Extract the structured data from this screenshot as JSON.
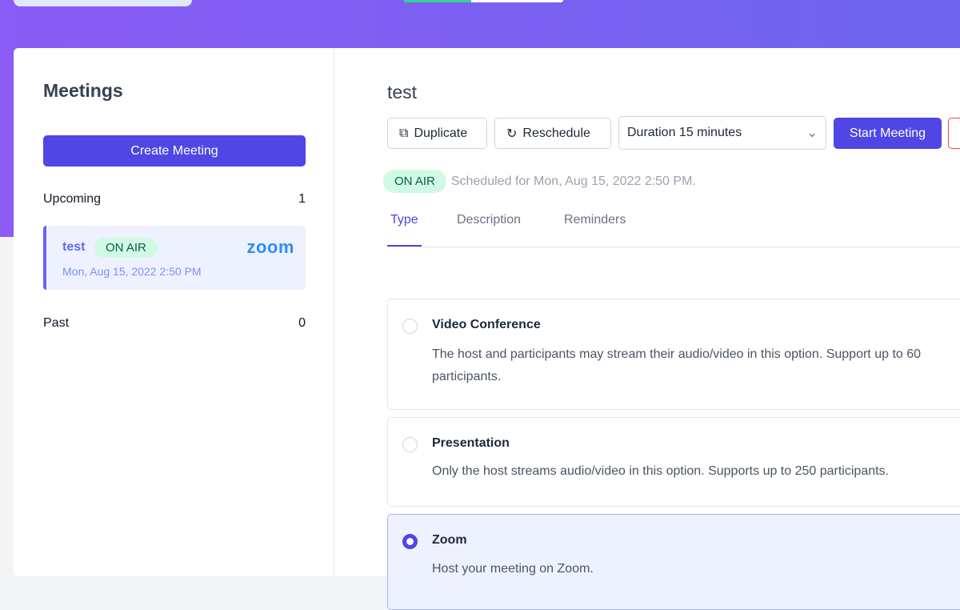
{
  "top": {
    "progress_percent": 42,
    "accent": "#34d399"
  },
  "sidebar": {
    "title": "Meetings",
    "create_label": "Create Meeting",
    "upcoming": {
      "label": "Upcoming",
      "count": "1"
    },
    "past": {
      "label": "Past",
      "count": "0"
    },
    "meeting": {
      "name": "test",
      "badge": "ON AIR",
      "date": "Mon, Aug 15, 2022 2:50 PM",
      "provider": "zoom"
    }
  },
  "main": {
    "title": "test",
    "toolbar": {
      "duplicate": "Duplicate",
      "reschedule": "Reschedule",
      "duration": "Duration 15 minutes",
      "start": "Start Meeting"
    },
    "status": {
      "badge": "ON AIR",
      "text": "Scheduled for Mon, Aug 15, 2022 2:50 PM."
    },
    "tabs": [
      {
        "label": "Type"
      },
      {
        "label": "Description"
      },
      {
        "label": "Reminders"
      }
    ],
    "options": [
      {
        "title": "Video Conference",
        "desc": "The host and participants may stream their audio/video in this option. Support up to 60 participants.",
        "selected": false
      },
      {
        "title": "Presentation",
        "desc": "Only the host streams audio/video in this option. Supports up to 250 participants.",
        "selected": false
      },
      {
        "title": "Zoom",
        "desc": "Host your meeting on Zoom.",
        "selected": true
      }
    ]
  },
  "colors": {
    "primary": "#4f46e5",
    "badge_bg": "#d1fae5",
    "zoom_blue": "#2d8cff"
  }
}
